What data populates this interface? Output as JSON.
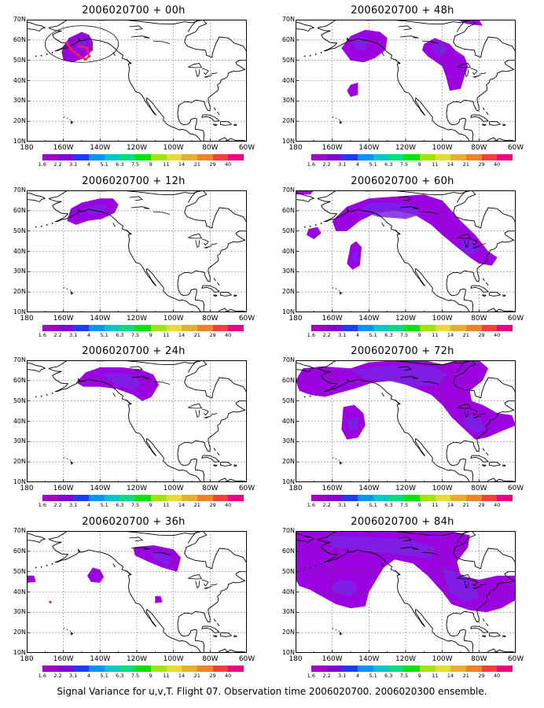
{
  "caption": "Signal Variance for u,v,T. Flight 07. Observation time 2006020700. 2006020300 ensemble.",
  "latitude_labels": [
    "70N",
    "60N",
    "50N",
    "40N",
    "30N",
    "20N",
    "10N"
  ],
  "longitude_labels": [
    "180",
    "160W",
    "140W",
    "120W",
    "100W",
    "80W",
    "60W"
  ],
  "colorbar": {
    "labels": [
      "1.6",
      "2.2",
      "3.1",
      "4",
      "5.1",
      "6.3",
      "7.5",
      "9",
      "11",
      "14",
      "21",
      "29",
      "40"
    ],
    "colors": [
      "#a000c8",
      "#8200dc",
      "#1e3cff",
      "#0096ff",
      "#00c8c8",
      "#00dc82",
      "#00e600",
      "#a0e600",
      "#e6dc32",
      "#e6af2d",
      "#f08228",
      "#fa3c3c",
      "#f00082"
    ]
  },
  "panels": [
    {
      "title": "2006020700 + 00h",
      "lead_hours": 0
    },
    {
      "title": "2006020700 + 48h",
      "lead_hours": 48
    },
    {
      "title": "2006020700 + 12h",
      "lead_hours": 12
    },
    {
      "title": "2006020700 + 60h",
      "lead_hours": 60
    },
    {
      "title": "2006020700 + 24h",
      "lead_hours": 24
    },
    {
      "title": "2006020700 + 72h",
      "lead_hours": 72
    },
    {
      "title": "2006020700 + 36h",
      "lead_hours": 36
    },
    {
      "title": "2006020700 + 84h",
      "lead_hours": 84
    }
  ]
}
